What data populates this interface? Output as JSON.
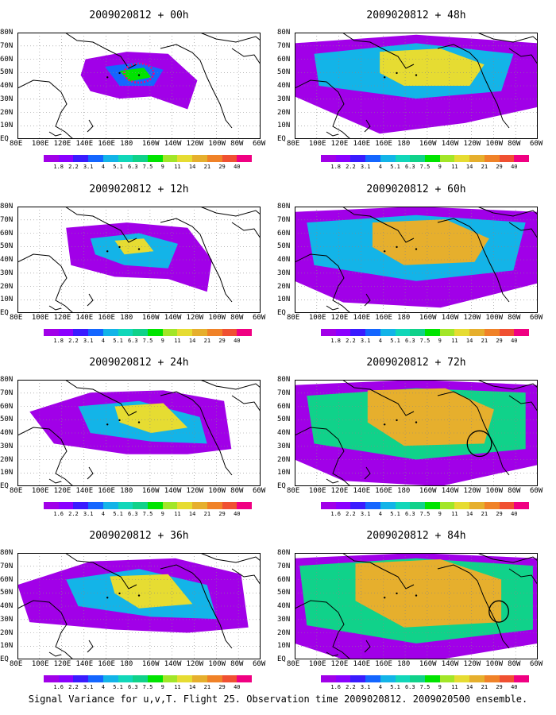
{
  "footer_caption": "Signal Variance for u,v,T. Flight 25. Observation time 2009020812. 2009020500 ensemble.",
  "x_tick_labels": [
    "80E",
    "100E",
    "120E",
    "140E",
    "160E",
    "180",
    "160W",
    "140W",
    "120W",
    "100W",
    "80W",
    "60W"
  ],
  "y_tick_labels": [
    "EQ",
    "10N",
    "20N",
    "30N",
    "40N",
    "50N",
    "60N",
    "70N",
    "80N"
  ],
  "colorbar": {
    "labels": [
      "1.8",
      "2.2",
      "3.1",
      "4",
      "5.1",
      "6.3",
      "7.5",
      "9",
      "11",
      "14",
      "21",
      "29",
      "40"
    ],
    "colors": [
      "#a100e8",
      "#8b00ff",
      "#3a1bff",
      "#1466ff",
      "#13b4e8",
      "#11d7b9",
      "#10d28a",
      "#00e400",
      "#a2e628",
      "#e6dc32",
      "#e6af2d",
      "#f08228",
      "#f05032",
      "#f00082"
    ]
  },
  "panels": [
    {
      "title": "2009020812 + 00h",
      "column": "left",
      "colorbar_labels": [
        "1.8",
        "2.2",
        "3.1",
        "4",
        "5.1",
        "6.3",
        "7.5",
        "9",
        "11",
        "14",
        "21",
        "29",
        "40"
      ]
    },
    {
      "title": "2009020812 + 12h",
      "column": "left",
      "colorbar_labels": [
        "1.8",
        "2.2",
        "3.1",
        "4",
        "5.1",
        "6.3",
        "7.5",
        "9",
        "11",
        "14",
        "21",
        "29",
        "40"
      ]
    },
    {
      "title": "2009020812 + 24h",
      "column": "left",
      "colorbar_labels": [
        "1.6",
        "2.2",
        "3.1",
        "4",
        "5.1",
        "6.3",
        "7.5",
        "9",
        "11",
        "14",
        "21",
        "29",
        "40"
      ]
    },
    {
      "title": "2009020812 + 36h",
      "column": "left",
      "colorbar_labels": [
        "1.6",
        "2.2",
        "3.1",
        "4",
        "5.1",
        "6.3",
        "7.5",
        "9",
        "11",
        "14",
        "21",
        "29",
        "40"
      ]
    },
    {
      "title": "2009020812 + 48h",
      "column": "right",
      "colorbar_labels": [
        "1.8",
        "2.2",
        "3.1",
        "4",
        "5.1",
        "6.3",
        "7.5",
        "9",
        "11",
        "14",
        "21",
        "29",
        "40"
      ]
    },
    {
      "title": "2009020812 + 60h",
      "column": "right",
      "colorbar_labels": [
        "1.8",
        "2.2",
        "3.1",
        "4",
        "5.1",
        "6.3",
        "7.5",
        "9",
        "11",
        "14",
        "21",
        "29",
        "40"
      ]
    },
    {
      "title": "2009020812 + 72h",
      "column": "right",
      "colorbar_labels": [
        "1.6",
        "2.2",
        "3.1",
        "4",
        "5.1",
        "6.3",
        "7.5",
        "9",
        "11",
        "14",
        "21",
        "29",
        "40"
      ]
    },
    {
      "title": "2009020812 + 84h",
      "column": "right",
      "colorbar_labels": [
        "1.6",
        "2.2",
        "3.1",
        "4",
        "5.1",
        "6.3",
        "7.5",
        "9",
        "11",
        "14",
        "21",
        "29",
        "40"
      ]
    }
  ]
}
